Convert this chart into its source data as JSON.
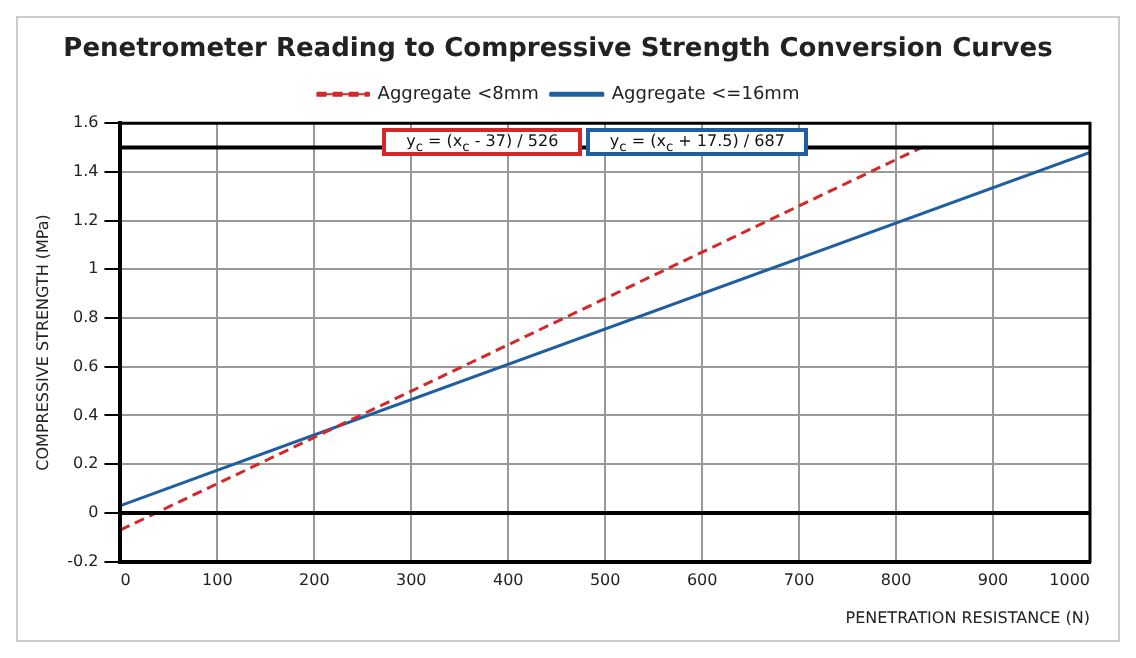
{
  "chart_data": {
    "type": "line",
    "title": "Penetrometer Reading to Compressive Strength Conversion Curves",
    "xlabel": "PENETRATION RESISTANCE (N)",
    "ylabel": "COMPRESSIVE STRENGTH (MPa)",
    "series": [
      {
        "name": "Aggregate <8mm",
        "color": "#d62728",
        "line_style": "dashed",
        "x": [
          0,
          826
        ],
        "values": [
          -0.07,
          1.5
        ]
      },
      {
        "name": "Aggregate <=16mm",
        "color": "#1f5f9f",
        "line_style": "solid",
        "x": [
          0,
          1000
        ],
        "values": [
          0.03,
          1.48
        ]
      }
    ],
    "annotations": [
      "y$_{c}$ = (x$_{c}$ - 37) / 526",
      "y$_{c}$ = (x$_{c}$ + 17.5) / 687"
    ],
    "xlim": [
      0,
      1000
    ],
    "xticks": [
      0,
      100,
      200,
      300,
      400,
      500,
      600,
      700,
      800,
      900,
      1000
    ],
    "ylim": [
      -0.2,
      1.6
    ],
    "yticks": [
      -0.2,
      0,
      0.2,
      0.4,
      0.6,
      0.8,
      1,
      1.2,
      1.4,
      1.6
    ],
    "ref_lines": [
      {
        "axis": "y",
        "value": 1.5,
        "color": "#000000"
      },
      {
        "axis": "y",
        "value": 0,
        "color": "#000000"
      }
    ],
    "grid": true,
    "legend": "top",
    "marker": "none"
  }
}
